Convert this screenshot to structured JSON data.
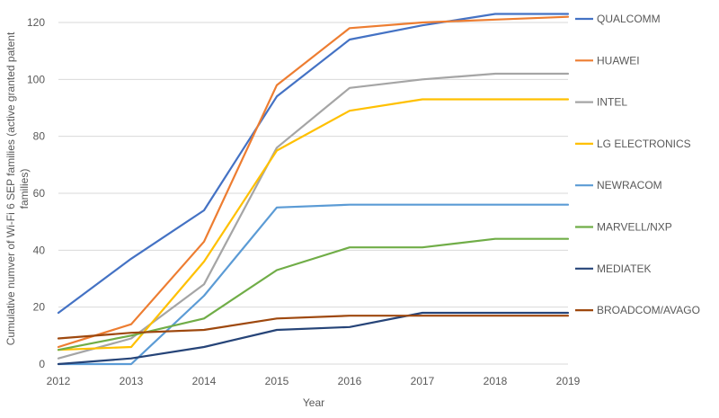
{
  "chart_data": {
    "type": "line",
    "title": "",
    "xlabel": "Year",
    "ylabel": "Cumulative numver of Wi-Fi 6 SEP families (active granted patent families)",
    "x": [
      2012,
      2013,
      2014,
      2015,
      2016,
      2017,
      2018,
      2019
    ],
    "ylim": [
      0,
      120
    ],
    "yticks": [
      0,
      20,
      40,
      60,
      80,
      100,
      120
    ],
    "grid": "horizontal",
    "legend_position": "right",
    "series": [
      {
        "name": "QUALCOMM",
        "color": "#4472c4",
        "values": [
          18,
          37,
          54,
          94,
          114,
          119,
          123,
          123
        ]
      },
      {
        "name": "HUAWEI",
        "color": "#ed7d31",
        "values": [
          6,
          14,
          43,
          98,
          118,
          120,
          121,
          122
        ]
      },
      {
        "name": "INTEL",
        "color": "#a5a5a5",
        "values": [
          2,
          9,
          28,
          76,
          97,
          100,
          102,
          102
        ]
      },
      {
        "name": "LG ELECTRONICS",
        "color": "#ffc000",
        "values": [
          5,
          6,
          36,
          75,
          89,
          93,
          93,
          93
        ]
      },
      {
        "name": "NEWRACOM",
        "color": "#5b9bd5",
        "values": [
          0,
          0,
          24,
          55,
          56,
          56,
          56,
          56
        ]
      },
      {
        "name": "MARVELL/NXP",
        "color": "#70ad47",
        "values": [
          5,
          10,
          16,
          33,
          41,
          41,
          44,
          44
        ]
      },
      {
        "name": "MEDIATEK",
        "color": "#264478",
        "values": [
          0,
          2,
          6,
          12,
          13,
          18,
          18,
          18
        ]
      },
      {
        "name": "BROADCOM/AVAGO",
        "color": "#9e480e",
        "values": [
          9,
          11,
          12,
          16,
          17,
          17,
          17,
          17
        ]
      }
    ]
  }
}
